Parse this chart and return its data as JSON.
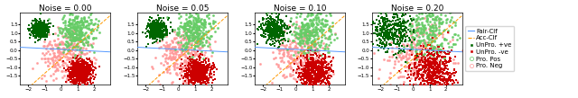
{
  "noise_levels": [
    0.0,
    0.05,
    0.1,
    0.2
  ],
  "xlim": [
    -2.5,
    3.0
  ],
  "ylim": [
    -2.0,
    2.2
  ],
  "fair_clf_color": "#5599ff",
  "acc_clf_color": "#ff9900",
  "unprotected_pos_color": "#006600",
  "unprotected_neg_color": "#cc0000",
  "protected_pos_color": "#66cc66",
  "protected_neg_color": "#ff9999",
  "title_fontsize": 6.5,
  "legend_fontsize": 5.0,
  "tick_fontsize": 4.0,
  "figsize": [
    6.4,
    1.09
  ],
  "dpi": 100,
  "clusters": {
    "unprotected_pos": {
      "mean": [
        -1.3,
        1.2
      ],
      "std": 0.25,
      "n": 400
    },
    "unprotected_neg": {
      "mean": [
        1.2,
        -1.3
      ],
      "std": 0.35,
      "n": 600
    },
    "protected_pos": {
      "mean": [
        1.0,
        1.1
      ],
      "std": 0.55,
      "n": 300
    },
    "protected_neg": {
      "mean": [
        0.2,
        -0.3
      ],
      "std": 0.75,
      "n": 300
    }
  },
  "fair_clf_slope": -0.05,
  "fair_clf_intercept": 0.05,
  "acc_clf_slope": 0.85,
  "acc_clf_intercept": -0.5
}
